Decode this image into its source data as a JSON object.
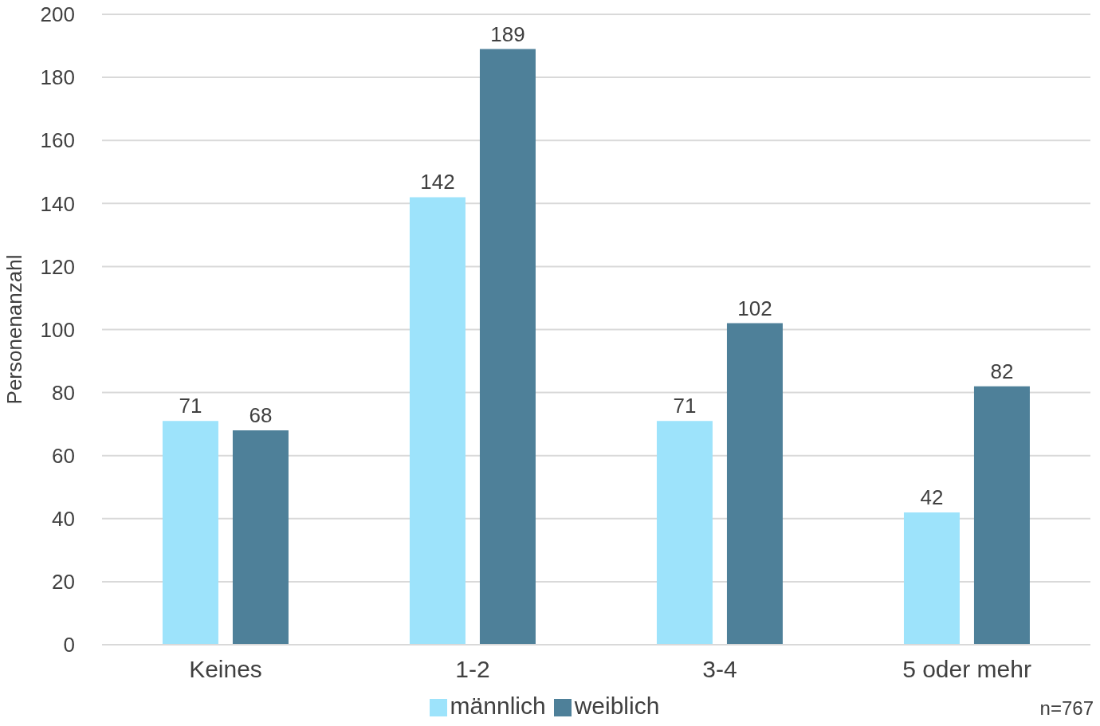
{
  "chart_data": {
    "type": "bar",
    "ylabel": "Personenanzahl",
    "categories": [
      "Keines",
      "1-2",
      "3-4",
      "5 oder mehr"
    ],
    "series": [
      {
        "name": "männlich",
        "color": "#9de3fb",
        "values": [
          71,
          142,
          71,
          42
        ]
      },
      {
        "name": "weiblich",
        "color": "#4e8099",
        "values": [
          68,
          189,
          102,
          82
        ]
      }
    ],
    "ylim": [
      0,
      200
    ],
    "yticks": [
      0,
      20,
      40,
      60,
      80,
      100,
      120,
      140,
      160,
      180,
      200
    ],
    "grid": "y",
    "legend": "bottom",
    "data_labels": true,
    "annotations": [
      "n=767"
    ]
  }
}
